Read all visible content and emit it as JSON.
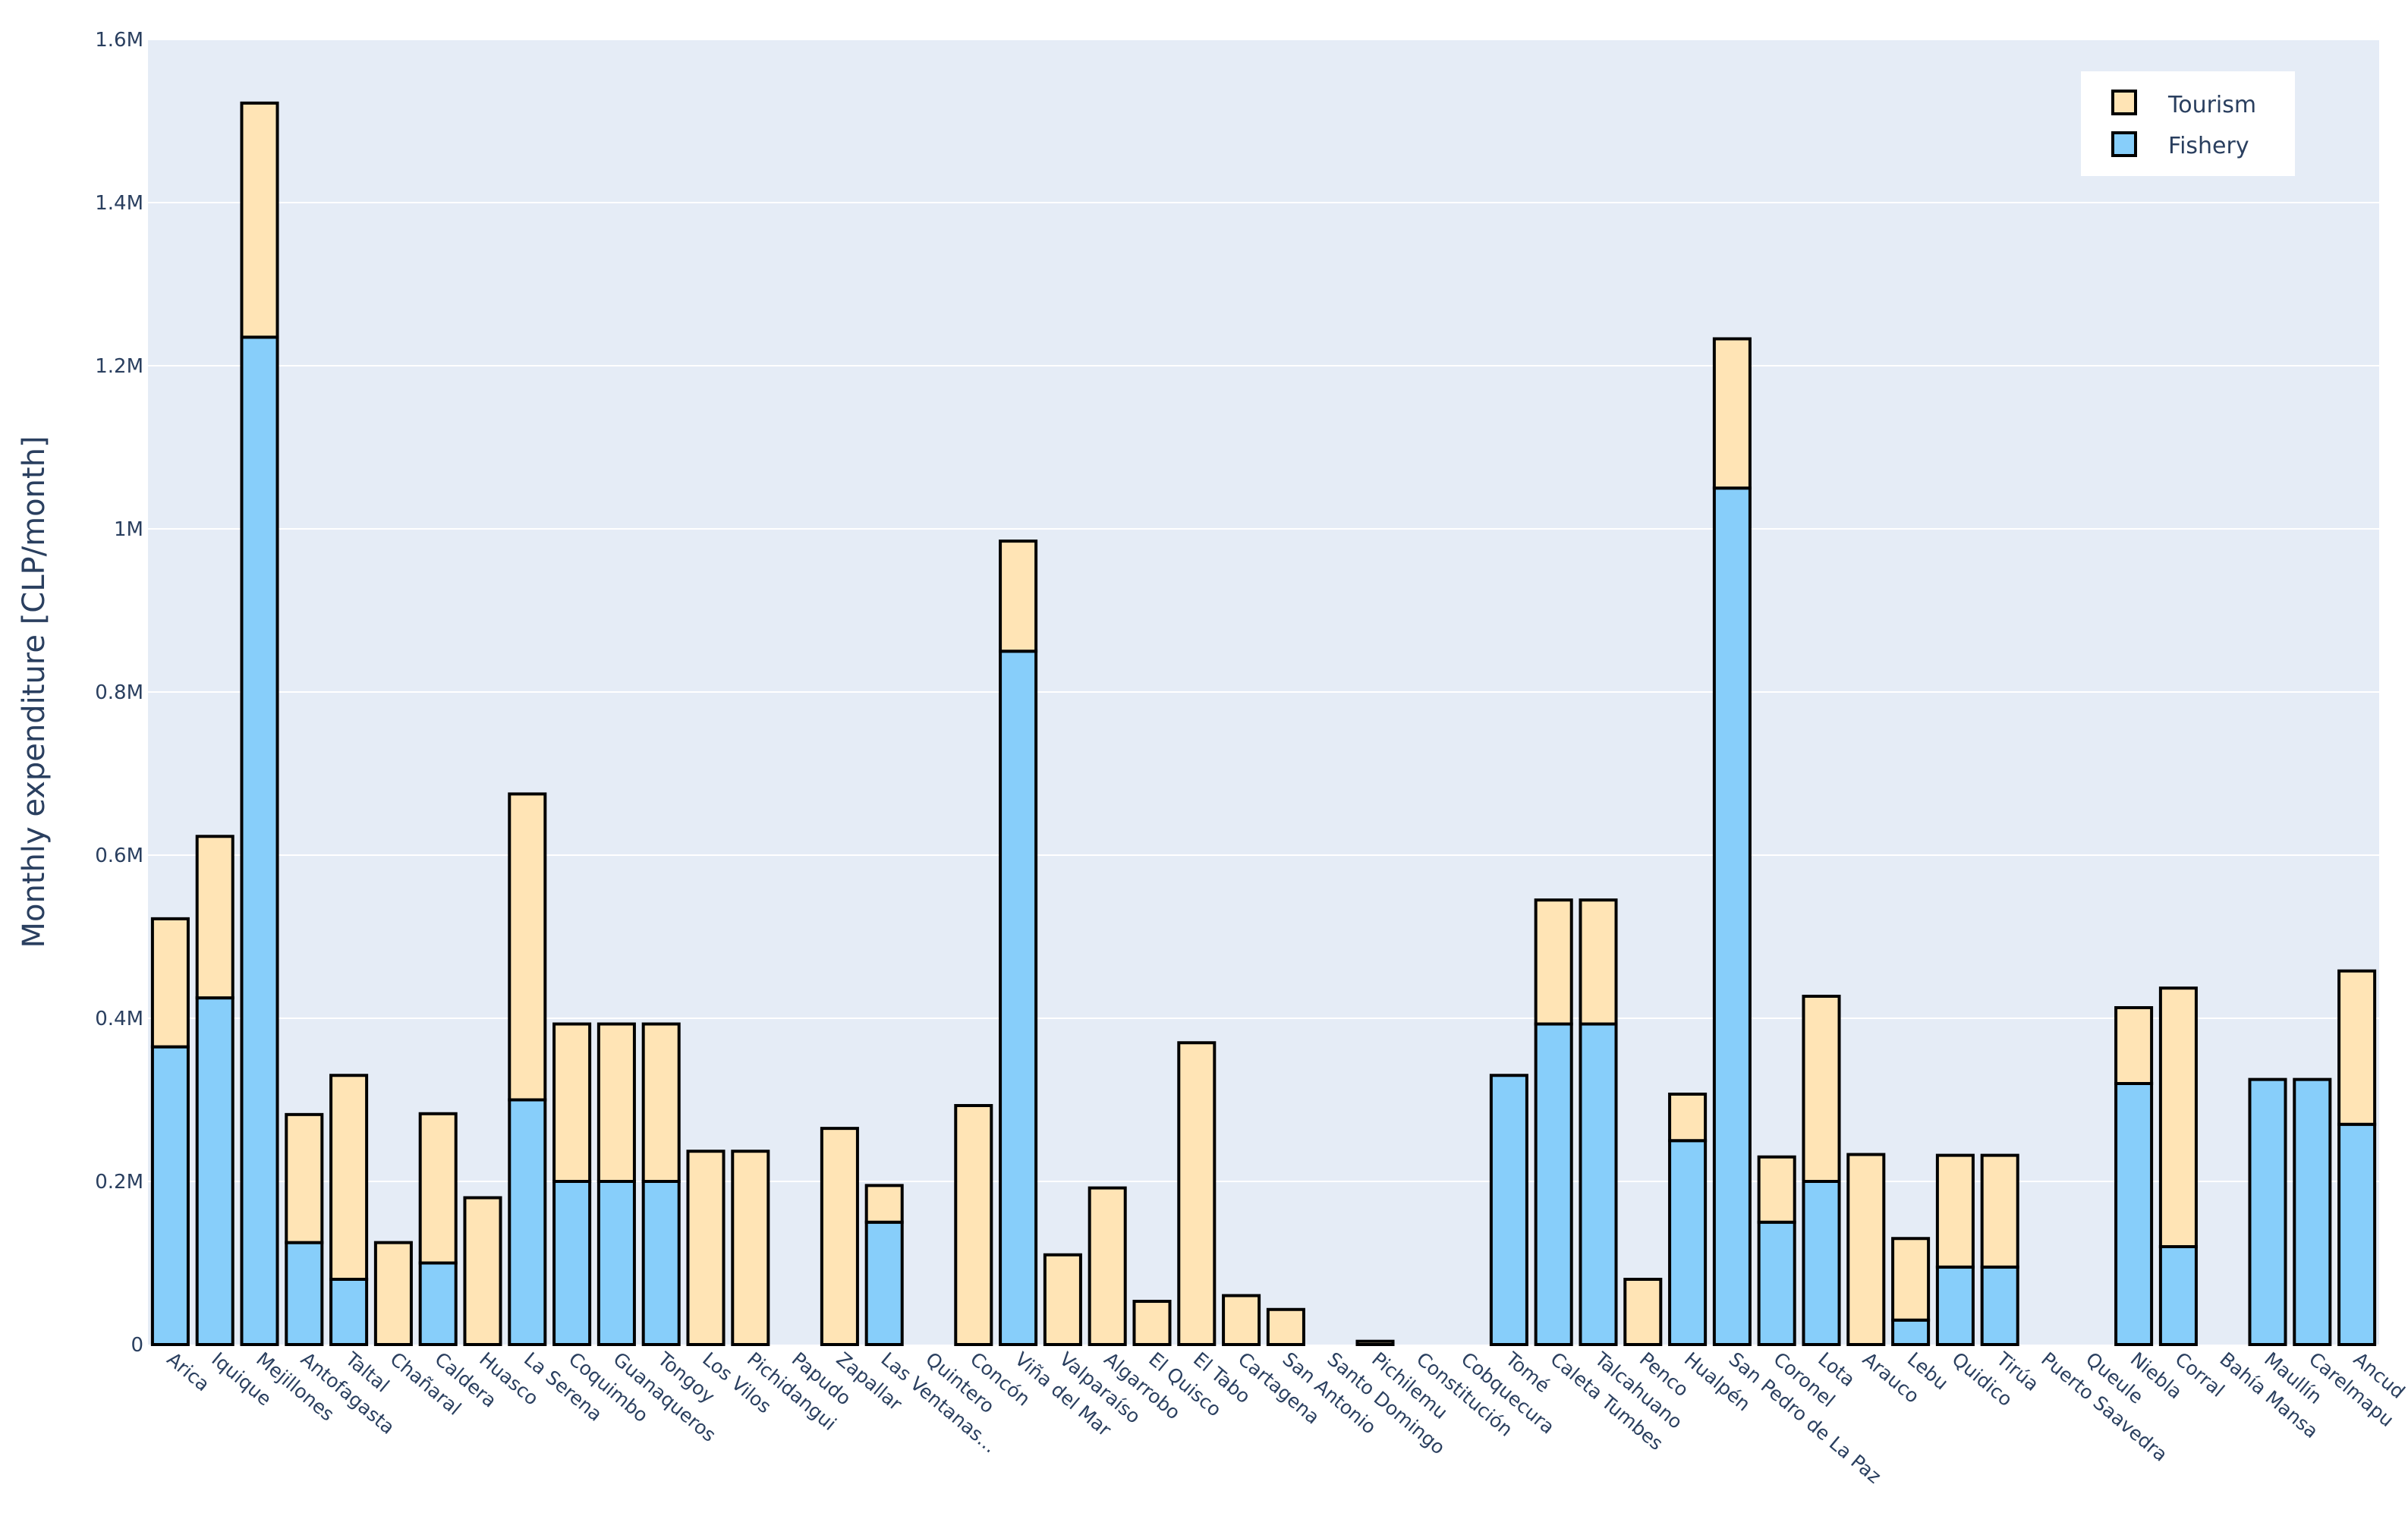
{
  "chart_data": {
    "type": "bar",
    "barmode": "stack",
    "title": "",
    "xlabel": "",
    "ylabel": "Monthly expenditure [CLP/month]",
    "ylim": [
      0,
      1600000
    ],
    "yticks": [
      0,
      200000,
      400000,
      600000,
      800000,
      1000000,
      1200000,
      1400000,
      1600000
    ],
    "ytick_labels": [
      "0",
      "0.2M",
      "0.4M",
      "0.6M",
      "0.8M",
      "1M",
      "1.2M",
      "1.4M",
      "1.6M"
    ],
    "grid": true,
    "legend_position": "top-right",
    "categories": [
      "Arica",
      "Iquique",
      "Mejillones",
      "Antofagasta",
      "Taltal",
      "Chañaral",
      "Caldera",
      "Huasco",
      "La Serena",
      "Coquimbo",
      "Guanaqueros",
      "Tongoy",
      "Los Vilos",
      "Pichidangui",
      "Papudo",
      "Zapallar",
      "Las Ventanas...",
      "Quintero",
      "Concón",
      "Viña del Mar",
      "Valparaíso",
      "Algarrobo",
      "El Quisco",
      "El Tabo",
      "Cartagena",
      "San Antonio",
      "Santo Domingo",
      "Pichilemu",
      "Constitución",
      "Cobquecura",
      "Tomé",
      "Caleta Tumbes",
      "Talcahuano",
      "Penco",
      "Hualpén",
      "San Pedro de La Paz",
      "Coronel",
      "Lota",
      "Arauco",
      "Lebu",
      "Quidico",
      "Tirúa",
      "Puerto Saavedra",
      "Queule",
      "Niebla",
      "Corral",
      "Bahía Mansa",
      "Maullín",
      "Carelmapu",
      "Ancud"
    ],
    "series": [
      {
        "name": "Fishery",
        "color": "#87cefa",
        "values": [
          365000,
          425000,
          1235000,
          125000,
          80000,
          0,
          100000,
          0,
          300000,
          200000,
          200000,
          200000,
          0,
          0,
          0,
          0,
          150000,
          0,
          0,
          850000,
          0,
          0,
          0,
          0,
          0,
          0,
          0,
          0,
          0,
          0,
          330000,
          393000,
          393000,
          0,
          250000,
          1050000,
          150000,
          200000,
          0,
          30000,
          95000,
          95000,
          0,
          0,
          320000,
          120000,
          0,
          325000,
          325000,
          270000
        ]
      },
      {
        "name": "Tourism",
        "color": "#ffe4b5",
        "values": [
          157000,
          198000,
          287000,
          157000,
          250000,
          125000,
          183000,
          180000,
          375000,
          193000,
          193000,
          193000,
          237000,
          237000,
          0,
          265000,
          45000,
          0,
          293000,
          135000,
          110000,
          192000,
          53000,
          370000,
          60000,
          43000,
          0,
          4000,
          0,
          0,
          0,
          152000,
          152000,
          80000,
          57000,
          183000,
          80000,
          227000,
          233000,
          100000,
          137000,
          137000,
          0,
          0,
          93000,
          317000,
          0,
          0,
          0,
          188000
        ]
      }
    ],
    "legend": [
      {
        "name": "Tourism",
        "color": "#ffe4b5"
      },
      {
        "name": "Fishery",
        "color": "#87cefa"
      }
    ]
  }
}
